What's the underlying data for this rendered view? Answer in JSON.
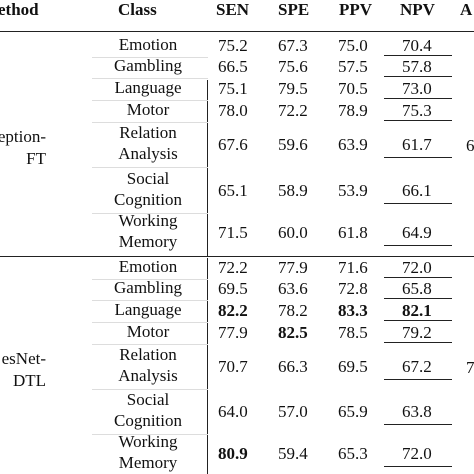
{
  "headers": {
    "method": "ethod",
    "class": "Class",
    "sen": "SEN",
    "spe": "SPE",
    "ppv": "PPV",
    "npv": "NPV",
    "acc": "A"
  },
  "groups": [
    {
      "method_lines": [
        "eption-",
        "FT"
      ],
      "side_value": "6",
      "rows": [
        {
          "class_lines": [
            "Emotion"
          ],
          "sen": "75.2",
          "spe": "67.3",
          "ppv": "75.0",
          "npv": "70.4"
        },
        {
          "class_lines": [
            "Gambling"
          ],
          "sen": "66.5",
          "spe": "75.6",
          "ppv": "57.5",
          "npv": "57.8"
        },
        {
          "class_lines": [
            "Language"
          ],
          "sen": "75.1",
          "spe": "79.5",
          "ppv": "70.5",
          "npv": "73.0"
        },
        {
          "class_lines": [
            "Motor"
          ],
          "sen": "78.0",
          "spe": "72.2",
          "ppv": "78.9",
          "npv": "75.3"
        },
        {
          "class_lines": [
            "Relation",
            "Analysis"
          ],
          "sen": "67.6",
          "spe": "59.6",
          "ppv": "63.9",
          "npv": "61.7"
        },
        {
          "class_lines": [
            "Social",
            "Cognition"
          ],
          "sen": "65.1",
          "spe": "58.9",
          "ppv": "53.9",
          "npv": "66.1"
        },
        {
          "class_lines": [
            "Working",
            "Memory"
          ],
          "sen": "71.5",
          "spe": "60.0",
          "ppv": "61.8",
          "npv": "64.9"
        }
      ]
    },
    {
      "method_lines": [
        "esNet-",
        "DTL"
      ],
      "side_value": "7",
      "rows": [
        {
          "class_lines": [
            "Emotion"
          ],
          "sen": "72.2",
          "spe": "77.9",
          "ppv": "71.6",
          "npv": "72.0"
        },
        {
          "class_lines": [
            "Gambling"
          ],
          "sen": "69.5",
          "spe": "63.6",
          "ppv": "72.8",
          "npv": "65.8"
        },
        {
          "class_lines": [
            "Language"
          ],
          "sen": "82.2",
          "spe": "78.2",
          "ppv": "83.3",
          "npv": "82.1"
        },
        {
          "class_lines": [
            "Motor"
          ],
          "sen": "77.9",
          "spe": "82.5",
          "ppv": "78.5",
          "npv": "79.2"
        },
        {
          "class_lines": [
            "Relation",
            "Analysis"
          ],
          "sen": "70.7",
          "spe": "66.3",
          "ppv": "69.5",
          "npv": "67.2"
        },
        {
          "class_lines": [
            "Social",
            "Cognition"
          ],
          "sen": "64.0",
          "spe": "57.0",
          "ppv": "65.9",
          "npv": "63.8"
        },
        {
          "class_lines": [
            "Working",
            "Memory"
          ],
          "sen": "80.9",
          "spe": "59.4",
          "ppv": "65.3",
          "npv": "72.0"
        }
      ]
    }
  ],
  "bold_cells": [
    "g1r2sen",
    "g1r2ppv",
    "g1r2npv",
    "g1r3spe",
    "g1r6sen"
  ]
}
